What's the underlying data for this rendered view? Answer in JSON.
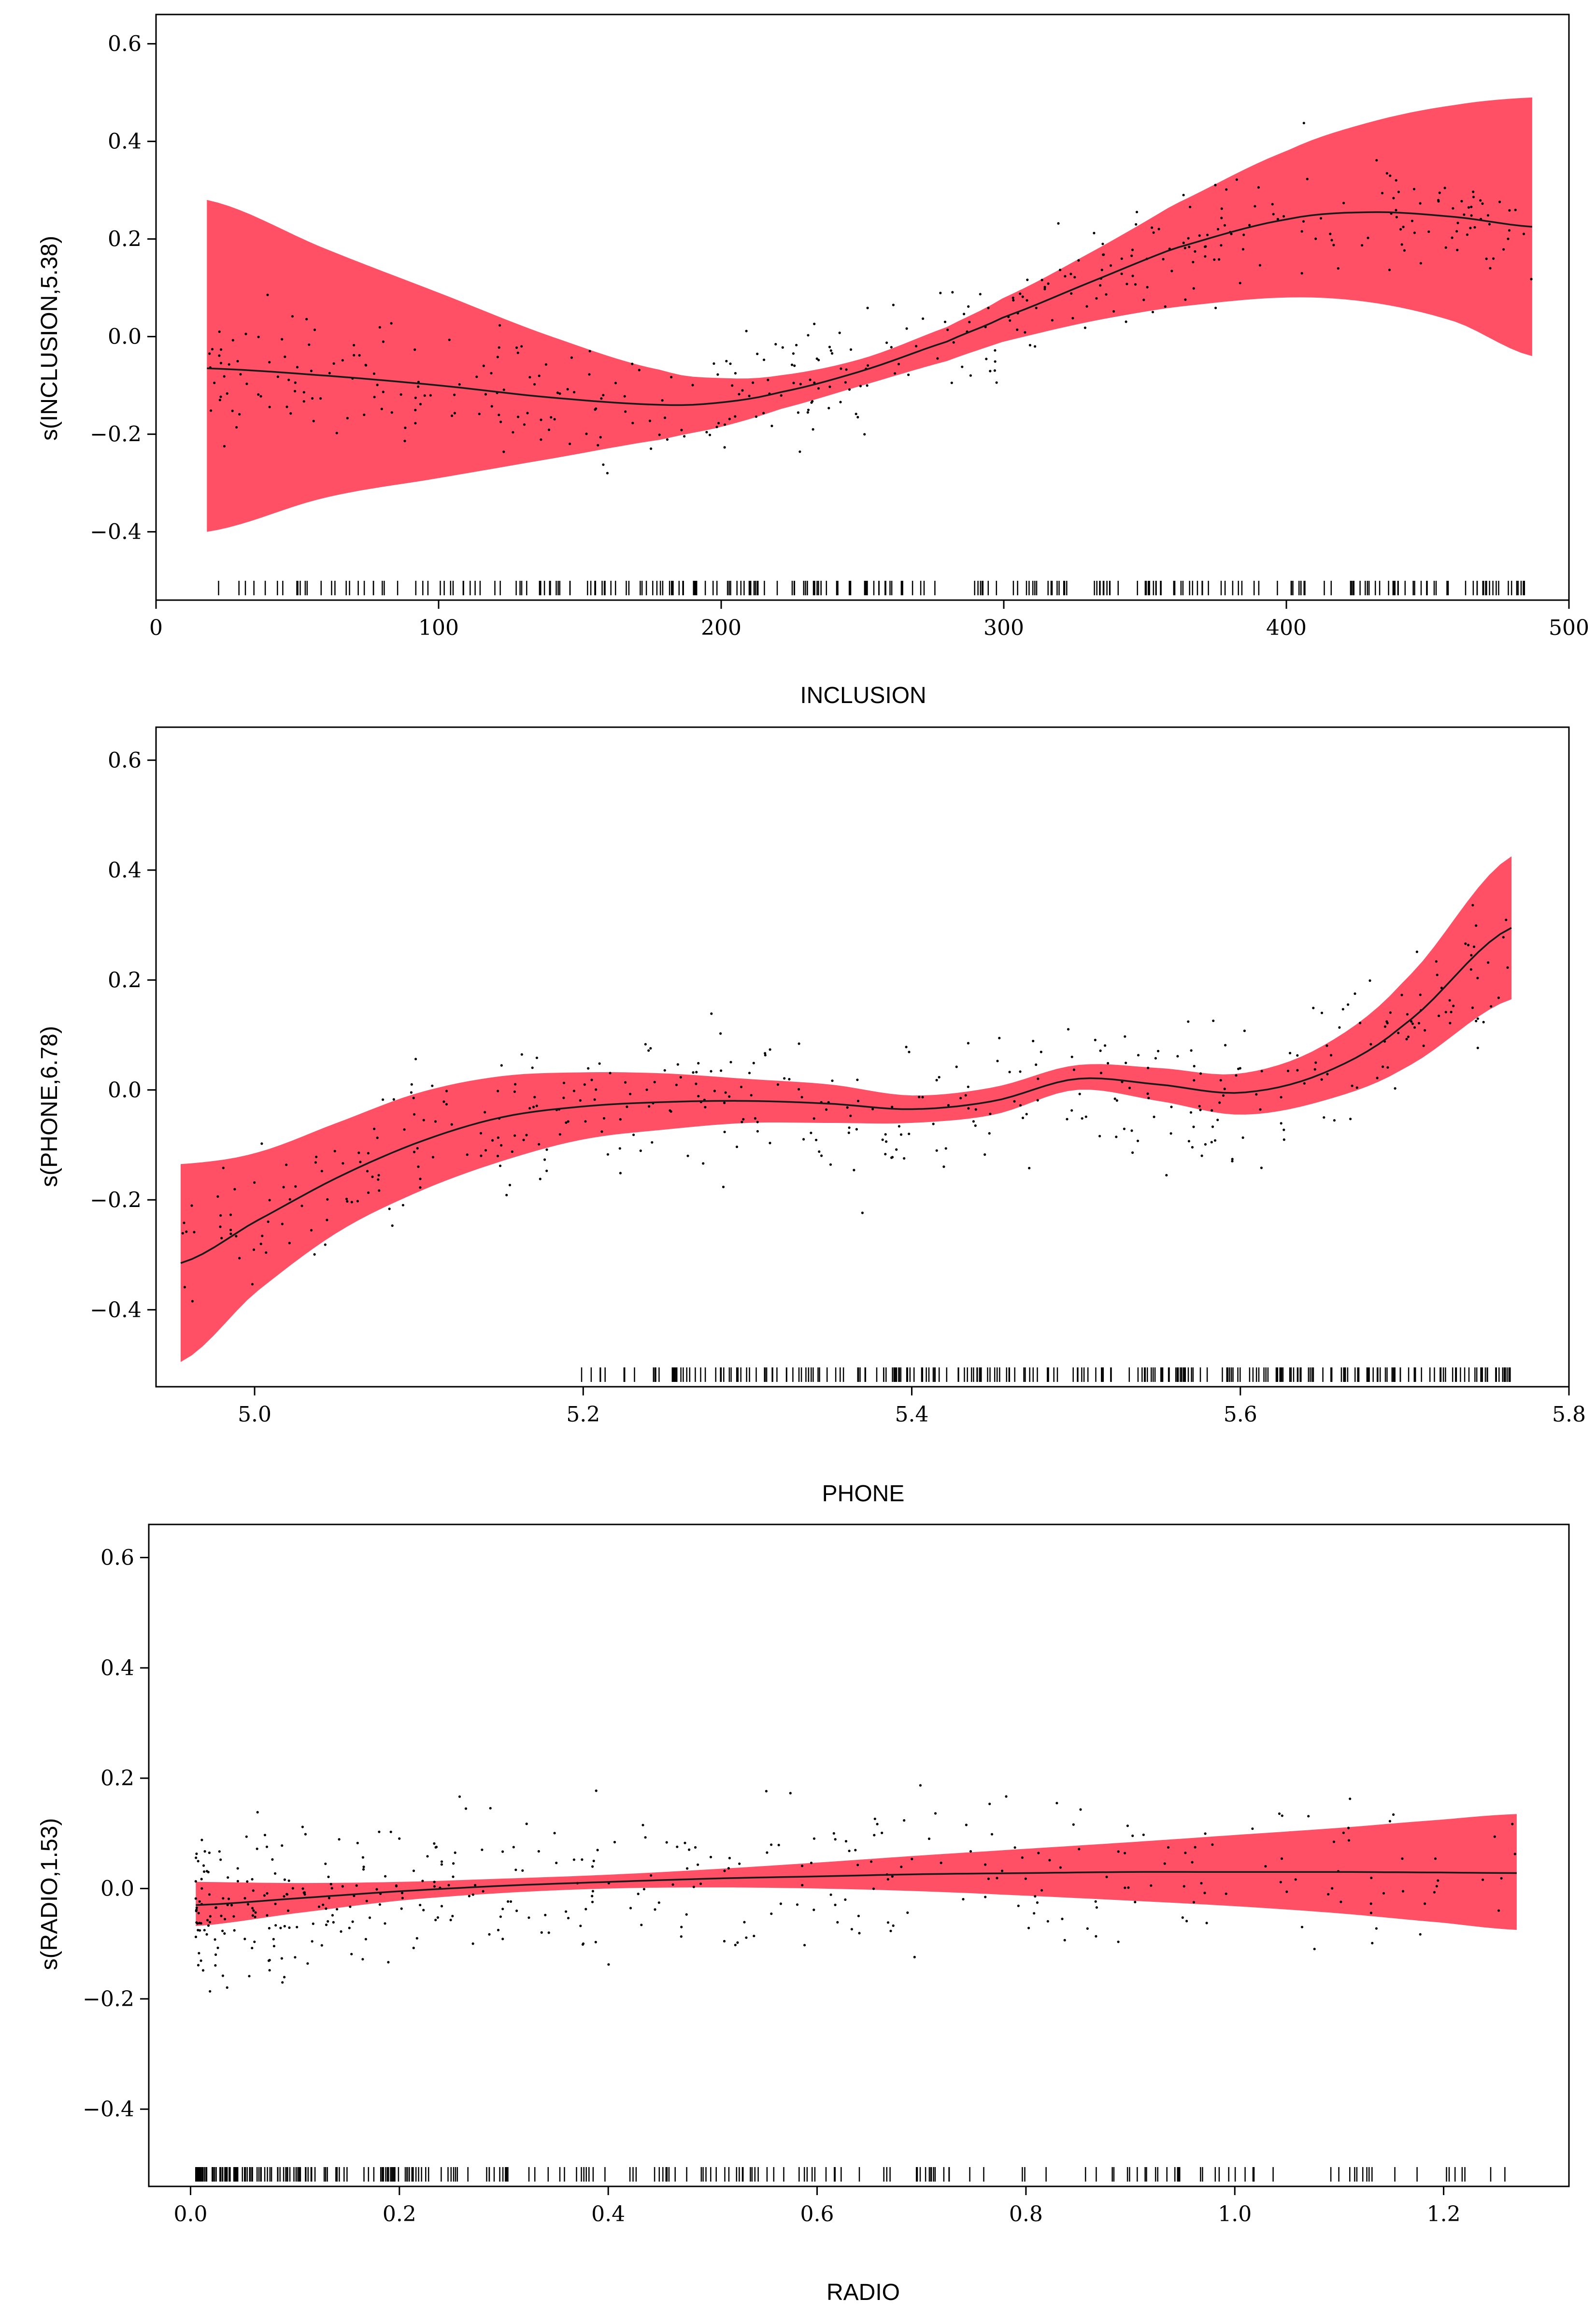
{
  "figure": {
    "description_free": true
  },
  "colors": {
    "band": "#ff5066",
    "line": "#1a1a1a",
    "points": "#000000"
  },
  "chart_data": [
    {
      "type": "line",
      "name": "panel-inclusion",
      "xlabel": "INCLUSION",
      "ylabel": "s(INCLUSION,5.38)",
      "xlim": [
        0,
        500
      ],
      "ylim": [
        -0.54,
        0.66
      ],
      "xticks": [
        0,
        100,
        200,
        300,
        400,
        500
      ],
      "xtick_labels": [
        "0",
        "100",
        "200",
        "300",
        "400",
        "500"
      ],
      "yticks": [
        -0.4,
        -0.2,
        0.0,
        0.2,
        0.4,
        0.6
      ],
      "ytick_labels": [
        "−0.4",
        "−0.2",
        "0.0",
        "0.2",
        "0.4",
        "0.6"
      ],
      "x_range": [
        18,
        487
      ],
      "series": [
        {
          "name": "fit",
          "x": [
            18,
            60,
            100,
            140,
            180,
            200,
            220,
            250,
            280,
            300,
            330,
            360,
            400,
            430,
            460,
            487
          ],
          "values": [
            -0.065,
            -0.08,
            -0.1,
            -0.125,
            -0.14,
            -0.135,
            -0.115,
            -0.07,
            -0.01,
            0.04,
            0.11,
            0.18,
            0.24,
            0.255,
            0.245,
            0.225
          ]
        },
        {
          "name": "upper",
          "x": [
            18,
            60,
            100,
            140,
            180,
            200,
            220,
            250,
            280,
            300,
            330,
            360,
            400,
            430,
            460,
            487
          ],
          "values": [
            0.28,
            0.18,
            0.09,
            0.0,
            -0.07,
            -0.085,
            -0.08,
            -0.045,
            0.02,
            0.08,
            0.17,
            0.27,
            0.38,
            0.44,
            0.475,
            0.49
          ]
        },
        {
          "name": "lower",
          "x": [
            18,
            60,
            100,
            140,
            180,
            200,
            220,
            250,
            280,
            300,
            330,
            360,
            400,
            430,
            460,
            487
          ],
          "values": [
            -0.4,
            -0.33,
            -0.29,
            -0.25,
            -0.21,
            -0.185,
            -0.15,
            -0.1,
            -0.05,
            -0.01,
            0.03,
            0.06,
            0.08,
            0.07,
            0.03,
            -0.04
          ]
        }
      ]
    },
    {
      "type": "line",
      "name": "panel-phone",
      "xlabel": "PHONE",
      "ylabel": "s(PHONE,6.78)",
      "xlim": [
        4.94,
        5.8
      ],
      "ylim": [
        -0.54,
        0.66
      ],
      "xticks": [
        5.0,
        5.2,
        5.4,
        5.6,
        5.8
      ],
      "xtick_labels": [
        "5.0",
        "5.2",
        "5.4",
        "5.6",
        "5.8"
      ],
      "yticks": [
        -0.4,
        -0.2,
        0.0,
        0.2,
        0.4,
        0.6
      ],
      "ytick_labels": [
        "−0.4",
        "−0.2",
        "0.0",
        "0.2",
        "0.4",
        "0.6"
      ],
      "x_range": [
        4.955,
        5.765
      ],
      "series": [
        {
          "name": "fit",
          "x": [
            4.955,
            5.0,
            5.05,
            5.1,
            5.15,
            5.2,
            5.25,
            5.3,
            5.35,
            5.4,
            5.45,
            5.5,
            5.55,
            5.6,
            5.65,
            5.7,
            5.765
          ],
          "values": [
            -0.315,
            -0.24,
            -0.16,
            -0.095,
            -0.05,
            -0.03,
            -0.022,
            -0.02,
            -0.025,
            -0.035,
            -0.02,
            0.02,
            0.01,
            -0.005,
            0.03,
            0.12,
            0.295
          ]
        },
        {
          "name": "upper",
          "x": [
            4.955,
            5.0,
            5.05,
            5.1,
            5.15,
            5.2,
            5.25,
            5.3,
            5.35,
            5.4,
            5.45,
            5.5,
            5.55,
            5.6,
            5.65,
            5.7,
            5.765
          ],
          "values": [
            -0.135,
            -0.115,
            -0.06,
            -0.005,
            0.025,
            0.032,
            0.03,
            0.02,
            0.01,
            -0.01,
            0.005,
            0.045,
            0.04,
            0.03,
            0.08,
            0.2,
            0.425
          ]
        },
        {
          "name": "lower",
          "x": [
            4.955,
            5.0,
            5.05,
            5.1,
            5.15,
            5.2,
            5.25,
            5.3,
            5.35,
            5.4,
            5.45,
            5.5,
            5.55,
            5.6,
            5.65,
            5.7,
            5.765
          ],
          "values": [
            -0.495,
            -0.37,
            -0.26,
            -0.185,
            -0.13,
            -0.09,
            -0.072,
            -0.06,
            -0.06,
            -0.06,
            -0.045,
            0.0,
            -0.02,
            -0.045,
            -0.02,
            0.04,
            0.165
          ]
        }
      ]
    },
    {
      "type": "line",
      "name": "panel-radio",
      "xlabel": "RADIO",
      "ylabel": "s(RADIO,1.53)",
      "xlim": [
        -0.04,
        1.32
      ],
      "ylim": [
        -0.54,
        0.66
      ],
      "xticks": [
        0.0,
        0.2,
        0.4,
        0.6,
        0.8,
        1.0,
        1.2
      ],
      "xtick_labels": [
        "0.0",
        "0.2",
        "0.4",
        "0.6",
        "0.8",
        "1.0",
        "1.2"
      ],
      "yticks": [
        -0.4,
        -0.2,
        0.0,
        0.2,
        0.4,
        0.6
      ],
      "ytick_labels": [
        "−0.4",
        "−0.2",
        "0.0",
        "0.2",
        "0.4",
        "0.6"
      ],
      "x_range": [
        0.005,
        1.27
      ],
      "series": [
        {
          "name": "fit",
          "x": [
            0.005,
            0.1,
            0.2,
            0.3,
            0.4,
            0.5,
            0.6,
            0.7,
            0.8,
            0.9,
            1.0,
            1.1,
            1.2,
            1.27
          ],
          "values": [
            -0.03,
            -0.018,
            -0.005,
            0.005,
            0.012,
            0.018,
            0.022,
            0.026,
            0.028,
            0.03,
            0.03,
            0.03,
            0.029,
            0.028
          ]
        },
        {
          "name": "upper",
          "x": [
            0.005,
            0.1,
            0.2,
            0.3,
            0.4,
            0.5,
            0.6,
            0.7,
            0.8,
            0.9,
            1.0,
            1.1,
            1.2,
            1.27
          ],
          "values": [
            0.012,
            0.01,
            0.012,
            0.018,
            0.025,
            0.035,
            0.047,
            0.06,
            0.072,
            0.084,
            0.097,
            0.11,
            0.125,
            0.135
          ]
        },
        {
          "name": "lower",
          "x": [
            0.005,
            0.1,
            0.2,
            0.3,
            0.4,
            0.5,
            0.6,
            0.7,
            0.8,
            0.9,
            1.0,
            1.1,
            1.2,
            1.27
          ],
          "values": [
            -0.068,
            -0.045,
            -0.022,
            -0.008,
            0.0,
            0.002,
            0.0,
            -0.005,
            -0.013,
            -0.022,
            -0.032,
            -0.045,
            -0.062,
            -0.075
          ]
        }
      ]
    }
  ]
}
